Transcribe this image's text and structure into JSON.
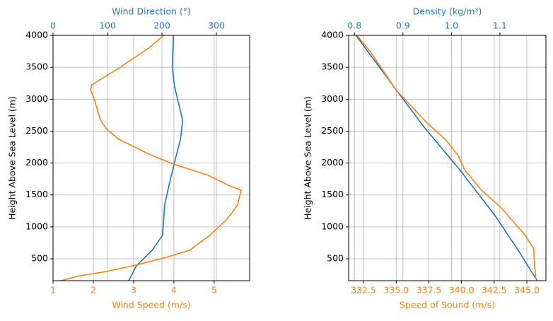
{
  "chart_data": [
    {
      "type": "line",
      "y_label": "Height Above Sea Level (m)",
      "x_label": "Wind Speed (m/s)",
      "x_color": "#ff7f0e",
      "x2_label": "Wind Direction (°)",
      "x2_color": "#1f77b4",
      "xlim": [
        1,
        5.88
      ],
      "xticks": [
        1,
        2,
        3,
        4,
        5
      ],
      "x2lim": [
        0,
        361
      ],
      "x2ticks": [
        0,
        100,
        200,
        300
      ],
      "ylim": [
        157,
        4000
      ],
      "yticks": [
        500,
        1000,
        1500,
        2000,
        2500,
        3000,
        3500,
        4000
      ],
      "grid": true,
      "series": [
        {
          "color": "#1f77b4",
          "axis": "x2",
          "x": [
            221,
            219,
            223,
            238,
            234,
            223,
            212,
            205,
            201,
            182,
            153,
            139
          ],
          "y": [
            4000,
            3502,
            3203,
            2671,
            2372,
            2007,
            1619,
            1343,
            867,
            634,
            390,
            157
          ]
        },
        {
          "color": "#ff7f0e",
          "axis": "x",
          "x": [
            3.75,
            3.4,
            2.67,
            1.96,
            1.93,
            2.02,
            2.18,
            2.32,
            2.63,
            3.46,
            3.98,
            4.86,
            5.39,
            5.67,
            5.58,
            5.32,
            4.89,
            4.39,
            3.75,
            3.05,
            2.32,
            1.67,
            1.19
          ],
          "y": [
            4000,
            3812,
            3502,
            3225,
            3147,
            3003,
            2671,
            2538,
            2372,
            2117,
            1985,
            1807,
            1641,
            1575,
            1343,
            1122,
            867,
            634,
            512,
            401,
            301,
            235,
            157
          ]
        }
      ]
    },
    {
      "type": "line",
      "y_label": "Height Above Sea Level (m)",
      "x_label": "Speed of Sound (m/s)",
      "x_color": "#ff7f0e",
      "x2_label": "Density (kg/m³)",
      "x2_color": "#1f77b4",
      "xlim": [
        331.36,
        346.46
      ],
      "xticks": [
        332.5,
        {
          "value": 335,
          "label": "335.0"
        },
        337.5,
        {
          "value": 340,
          "label": "340.0"
        },
        342.5,
        {
          "value": 345,
          "label": "345.0"
        }
      ],
      "x2lim": [
        0.788,
        1.195
      ],
      "x2ticks": [
        0.8,
        0.9,
        {
          "value": 1,
          "label": "1.0"
        },
        1.1
      ],
      "ylim": [
        157,
        4000
      ],
      "yticks": [
        500,
        1000,
        1500,
        2000,
        2500,
        3000,
        3500,
        4000
      ],
      "grid": true,
      "series": [
        {
          "color": "#1f77b4",
          "axis": "x2",
          "x": [
            0.803,
            0.886,
            0.944,
            1.017,
            1.09,
            1.134,
            1.177
          ],
          "y": [
            4000,
            3147,
            2560,
            1896,
            1177,
            679,
            157
          ]
        },
        {
          "color": "#ff7f0e",
          "axis": "x",
          "x": [
            332.01,
            333.09,
            334.98,
            337.42,
            338.77,
            339.75,
            340.23,
            341.48,
            343.1,
            344.83,
            345.53,
            345.59,
            345.7
          ],
          "y": [
            4000,
            3723,
            3147,
            2616,
            2372,
            2117,
            1896,
            1586,
            1287,
            878,
            656,
            401,
            180
          ]
        }
      ]
    }
  ]
}
